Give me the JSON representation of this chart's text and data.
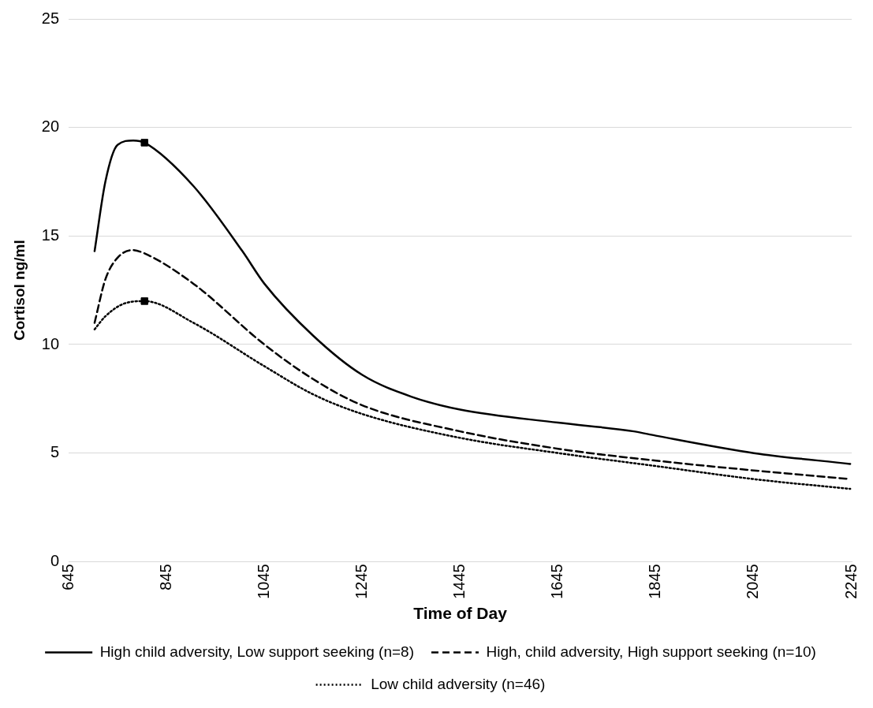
{
  "chart_data": {
    "type": "line",
    "xlabel": "Time of Day",
    "ylabel": "Cortisol ng/ml",
    "xlim": [
      645,
      2245
    ],
    "xticks": [
      645,
      845,
      1045,
      1245,
      1445,
      1645,
      1845,
      2045,
      2245
    ],
    "ylim": [
      0,
      25
    ],
    "yticks": [
      0,
      5,
      10,
      15,
      20,
      25
    ],
    "grid": "y",
    "legend": "bottom",
    "marker": "none",
    "series": [
      {
        "name": "High child adversity, Low support seeking (n=8)",
        "color": "#000000",
        "line_style": "solid",
        "x": [
          698,
          720,
          745,
          777,
          800,
          900,
          1000,
          1045,
          1145,
          1245,
          1345,
          1445,
          1645,
          1800,
          1845,
          2045,
          2242
        ],
        "values": [
          14.3,
          17.5,
          19.2,
          19.4,
          19.3,
          17.3,
          14.3,
          12.8,
          10.4,
          8.6,
          7.6,
          7.0,
          6.4,
          6.0,
          5.8,
          5.0,
          4.5
        ]
      },
      {
        "name": "High, child adversity, High support seeking (n=10)",
        "color": "#000000",
        "line_style": "dashed",
        "x": [
          698,
          720,
          745,
          775,
          800,
          900,
          1045,
          1145,
          1245,
          1445,
          1645,
          1845,
          2045,
          2242
        ],
        "values": [
          11.0,
          13.0,
          14.0,
          14.35,
          14.2,
          12.8,
          10.0,
          8.4,
          7.2,
          6.0,
          5.2,
          4.65,
          4.2,
          3.8
        ]
      },
      {
        "name": "Low child adversity (n=46)",
        "color": "#000000",
        "line_style": "dotted",
        "x": [
          698,
          720,
          760,
          800,
          900,
          1045,
          1145,
          1245,
          1445,
          1645,
          1845,
          2045,
          2242
        ],
        "values": [
          10.7,
          11.3,
          11.9,
          12.0,
          11.0,
          9.0,
          7.7,
          6.8,
          5.7,
          5.0,
          4.4,
          3.8,
          3.35
        ]
      },
      {
        "type": "scatter",
        "color": "#000000",
        "marker": "square",
        "x": [
          800,
          800
        ],
        "values": [
          19.3,
          12.0
        ]
      }
    ]
  }
}
